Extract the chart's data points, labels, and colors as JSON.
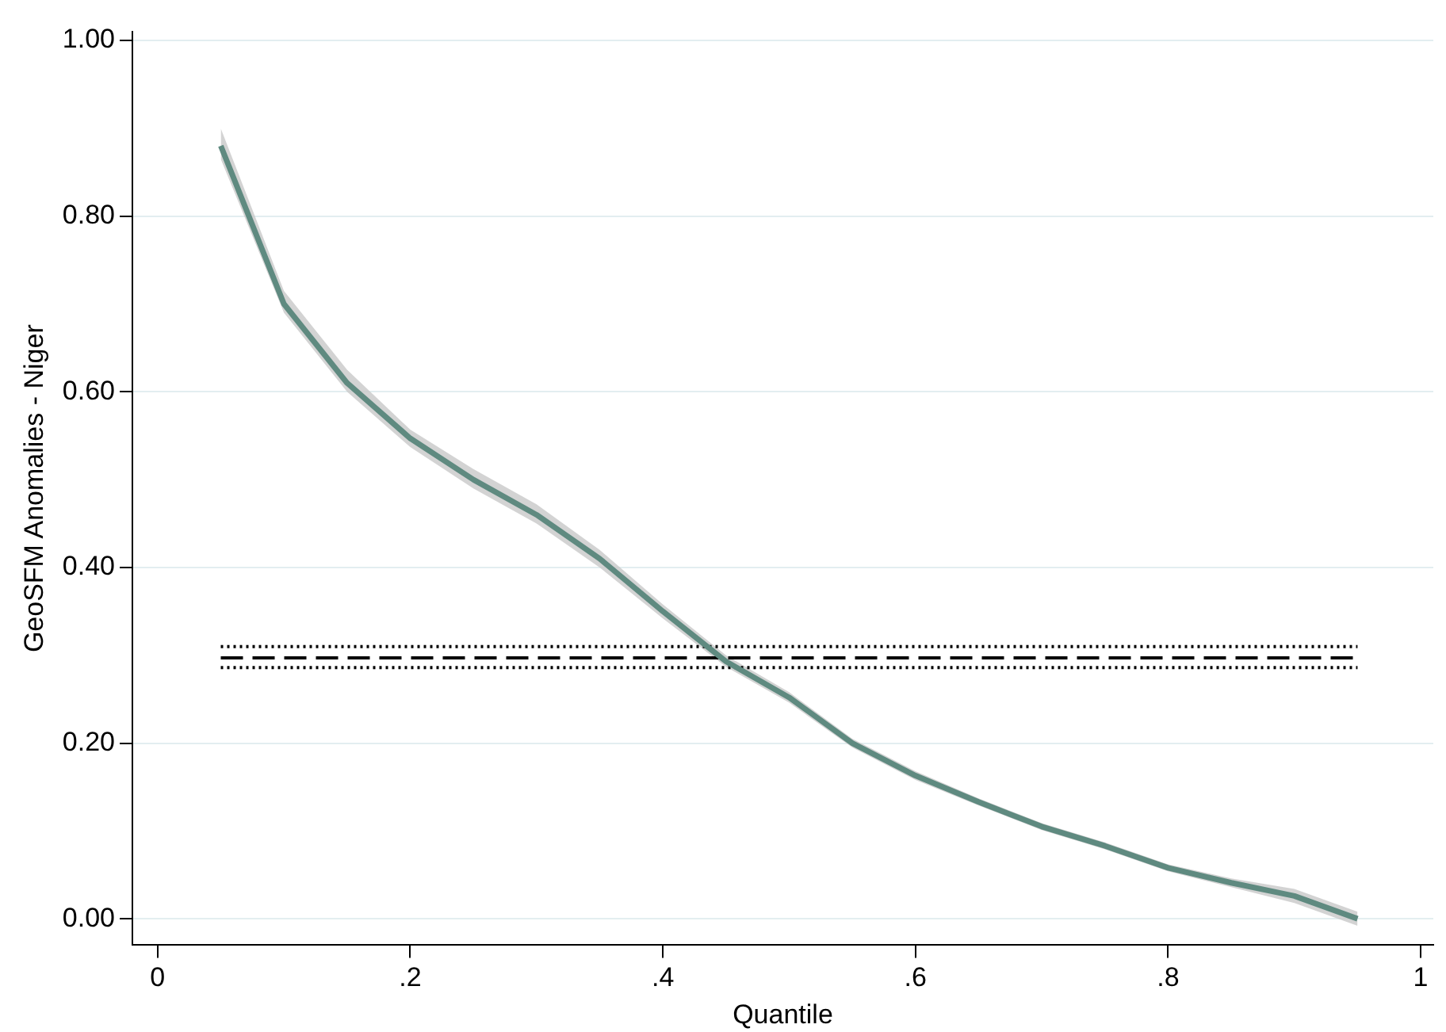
{
  "chart_data": {
    "type": "line",
    "xlabel": "Quantile",
    "ylabel": "GeoSFM Anomalies - Niger",
    "xlim": [
      -0.02,
      1.01
    ],
    "ylim": [
      -0.03,
      1.01
    ],
    "xticks": [
      0,
      {
        "value": 0.2,
        "label": ".2"
      },
      {
        "value": 0.4,
        "label": ".4"
      },
      {
        "value": 0.6,
        "label": ".6"
      },
      {
        "value": 0.8,
        "label": ".8"
      },
      1
    ],
    "yticks": [
      {
        "value": 0,
        "label": "0.00"
      },
      {
        "value": 0.2,
        "label": "0.20"
      },
      {
        "value": 0.4,
        "label": "0.40"
      },
      {
        "value": 0.6,
        "label": "0.60"
      },
      {
        "value": 0.8,
        "label": "0.80"
      },
      {
        "value": 1,
        "label": "1.00"
      }
    ],
    "grid": "y",
    "legend": false,
    "marker": "none",
    "series": [
      {
        "color": "#5f8a80",
        "line_style": "solid",
        "x": [
          0.05,
          0.1,
          0.15,
          0.2,
          0.25,
          0.3,
          0.35,
          0.4,
          0.45,
          0.5,
          0.55,
          0.6,
          0.65,
          0.7,
          0.75,
          0.8,
          0.85,
          0.9,
          0.95
        ],
        "values": [
          0.88,
          0.7,
          0.61,
          0.547,
          0.5,
          0.46,
          0.41,
          0.35,
          0.293,
          0.252,
          0.2,
          0.163,
          0.133,
          0.105,
          0.083,
          0.058,
          0.041,
          0.026,
          0
        ],
        "lower": [
          0.865,
          0.69,
          0.6,
          0.537,
          0.49,
          0.45,
          0.4,
          0.342,
          0.287,
          0.246,
          0.195,
          0.158,
          0.129,
          0.101,
          0.079,
          0.054,
          0.036,
          0.018,
          -0.008
        ],
        "upper": [
          0.9,
          0.715,
          0.625,
          0.557,
          0.512,
          0.472,
          0.42,
          0.358,
          0.3,
          0.258,
          0.205,
          0.168,
          0.137,
          0.109,
          0.087,
          0.062,
          0.046,
          0.034,
          0.008
        ]
      },
      {
        "color": "#000000",
        "line_style": "dashed",
        "x": [
          0.05,
          0.95
        ],
        "values": [
          0.297,
          0.297
        ]
      },
      {
        "color": "#000000",
        "line_style": "dotted",
        "x": [
          0.05,
          0.95
        ],
        "values": [
          0.31,
          0.31
        ]
      },
      {
        "color": "#000000",
        "line_style": "dotted",
        "x": [
          0.05,
          0.95
        ],
        "values": [
          0.286,
          0.286
        ]
      }
    ]
  }
}
